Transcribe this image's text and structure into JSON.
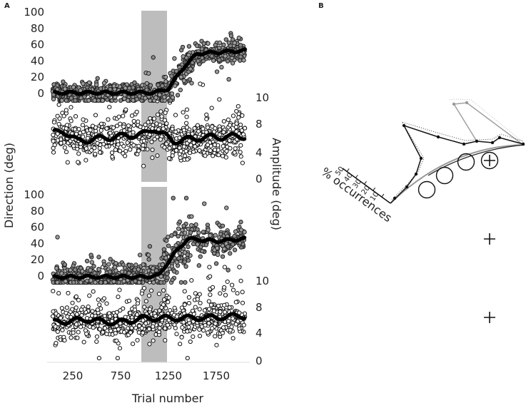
{
  "panels": {
    "a": "A",
    "b": "B"
  },
  "chart_data": [
    {
      "panel": "A",
      "type": "scatter",
      "xlabel": "Trial number",
      "ylabel_left": "Direction (deg)",
      "ylabel_right": "Amplitude (deg)",
      "xlim": [
        0,
        2100
      ],
      "xticks": [
        250,
        750,
        1250,
        1750
      ],
      "shaded_trial_range": [
        965,
        1235
      ],
      "subplots": [
        {
          "name": "top",
          "direction": {
            "yticks": [
              0,
              20,
              40,
              60,
              80,
              100
            ],
            "ylim": [
              -10,
              100
            ],
            "trend": [
              [
                0,
                0
              ],
              [
                1100,
                0
              ],
              [
                1250,
                5
              ],
              [
                1400,
                30
              ],
              [
                1550,
                48
              ],
              [
                2050,
                52
              ]
            ],
            "spread": 6
          },
          "amplitude": {
            "yticks": [
              0,
              4,
              8,
              10
            ],
            "trend": [
              [
                0,
                6.5
              ],
              [
                150,
                7
              ],
              [
                300,
                5.5
              ],
              [
                600,
                6
              ],
              [
                1000,
                6.5
              ],
              [
                1100,
                7.3
              ],
              [
                1300,
                5.5
              ],
              [
                1600,
                6
              ],
              [
                2050,
                6.2
              ]
            ],
            "spread": 1.3
          }
        },
        {
          "name": "bottom",
          "direction": {
            "yticks": [
              0,
              20,
              40,
              60,
              80,
              100
            ],
            "ylim": [
              -10,
              100
            ],
            "trend": [
              [
                0,
                -2
              ],
              [
                1000,
                -2
              ],
              [
                1150,
                0
              ],
              [
                1300,
                25
              ],
              [
                1450,
                45
              ],
              [
                1750,
                42
              ],
              [
                2050,
                45
              ]
            ],
            "spread": 9
          },
          "amplitude": {
            "yticks": [
              0,
              4,
              8,
              10
            ],
            "trend": [
              [
                0,
                5.5
              ],
              [
                400,
                6
              ],
              [
                700,
                5.5
              ],
              [
                1000,
                6.2
              ],
              [
                1300,
                6.2
              ],
              [
                1700,
                6.3
              ],
              [
                2050,
                6.6
              ]
            ],
            "spread": 1.5
          }
        }
      ]
    },
    {
      "panel": "B",
      "type": "polar-line",
      "axis_label": "% occurrences",
      "ticks": [
        10,
        20,
        30,
        40,
        50
      ]
    }
  ]
}
